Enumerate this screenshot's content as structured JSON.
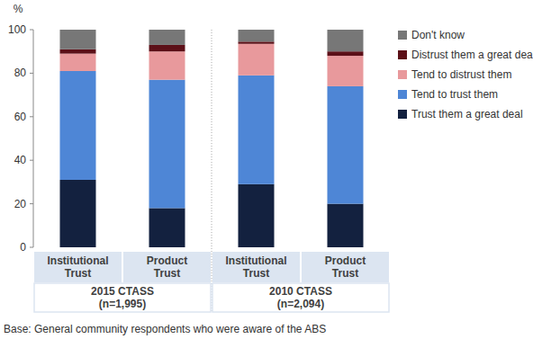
{
  "chart_data": {
    "type": "bar",
    "stacked": true,
    "y_label": "%",
    "categories": [
      "Institutional Trust",
      "Product Trust",
      "Institutional Trust",
      "Product Trust"
    ],
    "groups": [
      {
        "lines": [
          "2015 CTASS",
          "(n=1,995)"
        ],
        "span": [
          0,
          1
        ]
      },
      {
        "lines": [
          "2010 CTASS",
          "(n=2,094)"
        ],
        "span": [
          2,
          3
        ]
      }
    ],
    "series": [
      {
        "name": "Trust them a great deal",
        "color": "#13213f",
        "values": [
          31,
          18,
          29,
          20
        ]
      },
      {
        "name": "Tend to trust them",
        "color": "#4e86d6",
        "values": [
          50,
          59,
          50,
          54
        ]
      },
      {
        "name": "Tend to distrust them",
        "color": "#e8999c",
        "values": [
          8,
          13,
          14.5,
          14
        ]
      },
      {
        "name": "Distrust them a great deal",
        "color": "#5c1018",
        "values": [
          2,
          3,
          1,
          2
        ]
      },
      {
        "name": "Don't know",
        "color": "#777777",
        "values": [
          9,
          7,
          5.5,
          10
        ]
      }
    ],
    "ylim": [
      0,
      100
    ],
    "yticks": [
      0,
      20,
      40,
      60,
      80,
      100
    ],
    "grid": false,
    "legend": "right",
    "footnote": "Base: General community respondents who were aware of the ABS"
  }
}
